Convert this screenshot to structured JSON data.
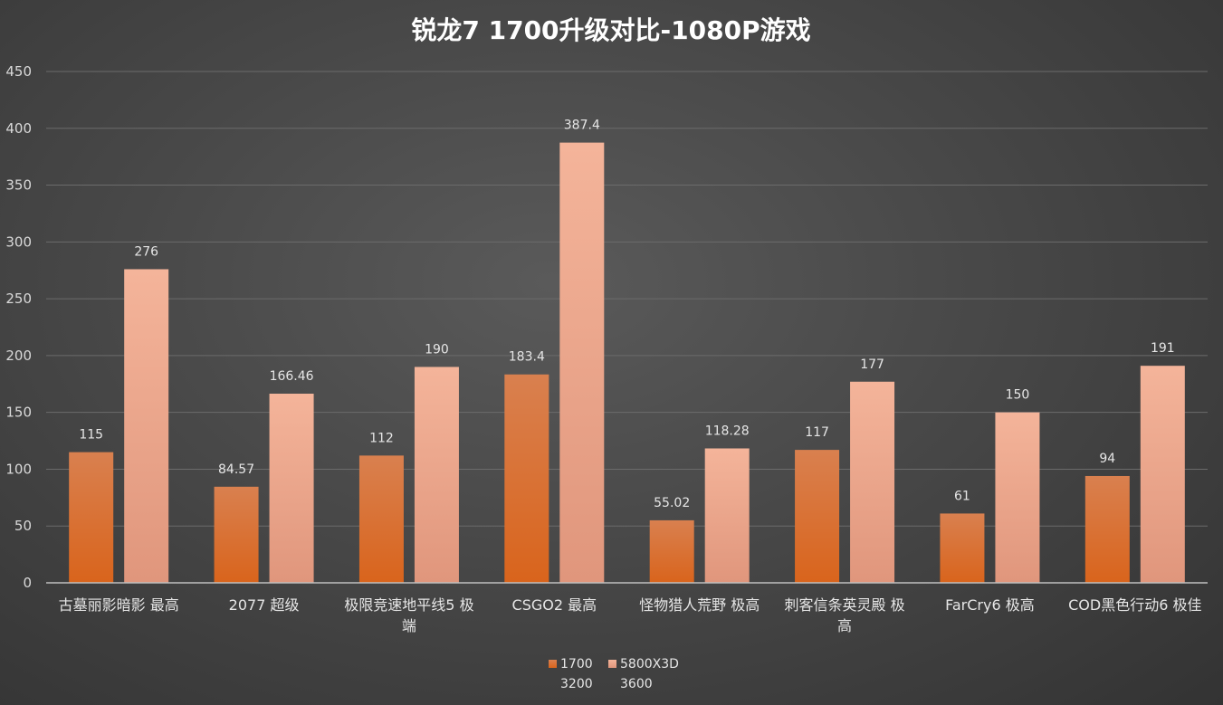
{
  "chart_data": {
    "type": "bar",
    "title": "锐龙7 1700升级对比-1080P游戏",
    "categories": [
      [
        "古墓丽影暗影 最高"
      ],
      [
        "2077 超级"
      ],
      [
        "极限竞速地平线5 极",
        "端"
      ],
      [
        "CSGO2 最高"
      ],
      [
        "怪物猎人荒野 极高"
      ],
      [
        "刺客信条英灵殿 极",
        "高"
      ],
      [
        "FarCry6 极高"
      ],
      [
        "COD黑色行动6 极佳"
      ]
    ],
    "series": [
      {
        "name": [
          "1700",
          "3200"
        ],
        "values": [
          115,
          84.57,
          112,
          183.4,
          55.02,
          117,
          61,
          94
        ],
        "labels": [
          "115",
          "84.57",
          "112",
          "183.4",
          "55.02",
          "117",
          "61",
          "94"
        ],
        "color_top": "#d9804f",
        "color_bottom": "#d9641c"
      },
      {
        "name": [
          "5800X3D",
          "3600"
        ],
        "values": [
          276,
          166.46,
          190,
          387.4,
          118.28,
          177,
          150,
          191
        ],
        "labels": [
          "276",
          "166.46",
          "190",
          "387.4",
          "118.28",
          "177",
          "150",
          "191"
        ],
        "color_top": "#f4b49a",
        "color_bottom": "#e0967c"
      }
    ],
    "ylim": [
      0,
      450
    ],
    "yticks": [
      0,
      50,
      100,
      150,
      200,
      250,
      300,
      350,
      400,
      450
    ],
    "grid": true,
    "legend": "bottom"
  }
}
